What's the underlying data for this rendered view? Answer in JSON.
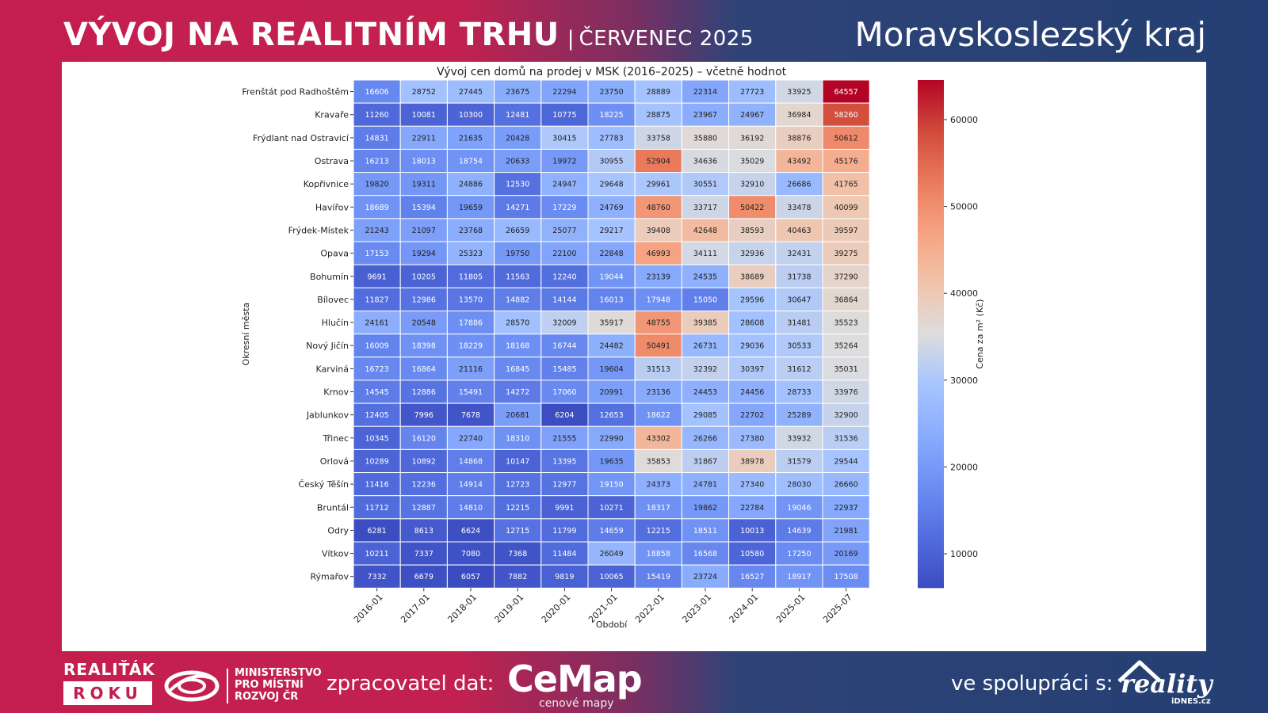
{
  "header": {
    "title": "VÝVOJ NA REALITNÍM TRHU",
    "separator": "|",
    "date": "ČERVENEC 2025",
    "region": "Moravskoslezský kraj"
  },
  "footer": {
    "award_line1": "REALIŤÁK",
    "award_line2": "ROKU",
    "ministry_line1": "MINISTERSTVO",
    "ministry_line2": "PRO MÍSTNÍ",
    "ministry_line3": "ROZVOJ ČR",
    "processor_label": "zpracovatel dat:",
    "processor_name": "CeMap",
    "processor_sub": "cenové mapy",
    "partner_label": "ve spolupráci s:",
    "partner_name": "reality",
    "partner_sub": "iDNES.cz"
  },
  "chart_data": {
    "type": "heatmap",
    "title": "Vývoj cen domů na prodej v MSK (2016–2025) – včetně hodnot",
    "xlabel": "Období",
    "ylabel": "Okresní města",
    "colorbar_label": "Cena za m² (Kč)",
    "colorbar_ticks": [
      10000,
      20000,
      30000,
      40000,
      50000,
      60000
    ],
    "value_range": [
      6057,
      64557
    ],
    "colormap": "coolwarm",
    "x": [
      "2016-01",
      "2017-01",
      "2018-01",
      "2019-01",
      "2020-01",
      "2021-01",
      "2022-01",
      "2023-01",
      "2024-01",
      "2025-01",
      "2025-07"
    ],
    "y": [
      "Frenštát pod Radhoštěm",
      "Kravaře",
      "Frýdlant nad Ostravicí",
      "Ostrava",
      "Kopřivnice",
      "Havířov",
      "Frýdek-Místek",
      "Opava",
      "Bohumín",
      "Bílovec",
      "Hlučín",
      "Nový Jičín",
      "Karviná",
      "Krnov",
      "Jablunkov",
      "Třinec",
      "Orlová",
      "Český Těšín",
      "Bruntál",
      "Odry",
      "Vítkov",
      "Rýmařov"
    ],
    "values": [
      [
        16606,
        28752,
        27445,
        23675,
        22294,
        23750,
        28889,
        22314,
        27723,
        33925,
        64557
      ],
      [
        11260,
        10081,
        10300,
        12481,
        10775,
        18225,
        28875,
        23967,
        24967,
        36984,
        58260
      ],
      [
        14831,
        22911,
        21635,
        20428,
        30415,
        27783,
        33758,
        35880,
        36192,
        38876,
        50612
      ],
      [
        16213,
        18013,
        18754,
        20633,
        19972,
        30955,
        52904,
        34636,
        35029,
        43492,
        45176
      ],
      [
        19820,
        19311,
        24886,
        12530,
        24947,
        29648,
        29961,
        30551,
        32910,
        26686,
        41765
      ],
      [
        18689,
        15394,
        19659,
        14271,
        17229,
        24769,
        48760,
        33717,
        50422,
        33478,
        40099
      ],
      [
        21243,
        21097,
        23768,
        26659,
        25077,
        29217,
        39408,
        42648,
        38593,
        40463,
        39597
      ],
      [
        17153,
        19294,
        25323,
        19750,
        22100,
        22848,
        46993,
        34111,
        32936,
        32431,
        39275
      ],
      [
        9691,
        10205,
        11805,
        11563,
        12240,
        19044,
        23139,
        24535,
        38689,
        31738,
        37290
      ],
      [
        11827,
        12986,
        13570,
        14882,
        14144,
        16013,
        17948,
        15050,
        29596,
        30647,
        36864
      ],
      [
        24161,
        20548,
        17886,
        28570,
        32009,
        35917,
        48755,
        39385,
        28608,
        31481,
        35523
      ],
      [
        16009,
        18398,
        18229,
        18168,
        16744,
        24482,
        50491,
        26731,
        29036,
        30533,
        35264
      ],
      [
        16723,
        16864,
        21116,
        16845,
        15485,
        19604,
        31513,
        32392,
        30397,
        31612,
        35031
      ],
      [
        14545,
        12886,
        15491,
        14272,
        17060,
        20991,
        23136,
        24453,
        24456,
        28733,
        33976
      ],
      [
        12405,
        7996,
        7678,
        20681,
        6204,
        12653,
        18622,
        29085,
        22702,
        25289,
        32900
      ],
      [
        10345,
        16120,
        22740,
        18310,
        21555,
        22990,
        43302,
        26266,
        27380,
        33932,
        31536
      ],
      [
        10289,
        10892,
        14868,
        10147,
        13395,
        19635,
        35853,
        31867,
        38978,
        31579,
        29544
      ],
      [
        11416,
        12236,
        14914,
        12723,
        12977,
        19150,
        24373,
        24781,
        27340,
        28030,
        26660
      ],
      [
        11712,
        12887,
        14810,
        12215,
        9991,
        10271,
        18317,
        19862,
        22784,
        19046,
        22937
      ],
      [
        6281,
        8613,
        6624,
        12715,
        11799,
        14659,
        12215,
        18511,
        10013,
        14639,
        21981
      ],
      [
        10211,
        7337,
        7080,
        7368,
        11484,
        26049,
        18858,
        16568,
        10580,
        17250,
        20169
      ],
      [
        7332,
        6679,
        6057,
        7882,
        9819,
        10065,
        15419,
        23724,
        16527,
        18917,
        17508
      ]
    ]
  }
}
